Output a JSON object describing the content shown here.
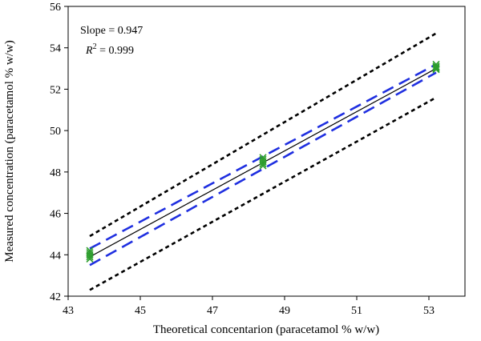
{
  "chart_data": {
    "type": "scatter",
    "xlabel": "Theoretical concentarion (paracetamol % w/w)",
    "ylabel": "Measured concentration (paracetamol % w/w)",
    "xlim": [
      43,
      54
    ],
    "ylim": [
      42,
      56
    ],
    "xticks": [
      43,
      45,
      47,
      49,
      51,
      53
    ],
    "yticks": [
      42,
      44,
      46,
      48,
      50,
      52,
      54,
      56
    ],
    "grid": false,
    "annotations": {
      "slope": "Slope = 0.947",
      "r_symbol": "R",
      "r_exponent": "2",
      "r_value": " = 0.999"
    },
    "points": {
      "color": "#2e9e2e",
      "x": [
        43.6,
        43.6,
        43.6,
        43.6,
        43.6,
        48.4,
        48.4,
        48.4,
        48.4,
        48.4,
        53.2,
        53.2,
        53.2,
        53.2,
        53.2
      ],
      "y": [
        43.8,
        43.9,
        44.0,
        44.1,
        44.2,
        48.3,
        48.4,
        48.5,
        48.6,
        48.7,
        52.95,
        53.0,
        53.05,
        53.1,
        53.2
      ]
    },
    "lines": [
      {
        "role": "regression",
        "color": "#000000",
        "dash": "solid",
        "x": [
          43.6,
          53.2
        ],
        "y": [
          43.9,
          53.0
        ]
      },
      {
        "role": "confidence-upper",
        "color": "#1f2fe0",
        "dash": "long-dash",
        "x": [
          43.6,
          53.2
        ],
        "y": [
          44.3,
          53.2
        ]
      },
      {
        "role": "confidence-lower",
        "color": "#1f2fe0",
        "dash": "long-dash",
        "x": [
          43.6,
          53.2
        ],
        "y": [
          43.5,
          52.8
        ]
      },
      {
        "role": "prediction-upper",
        "color": "#000000",
        "dash": "short-dash",
        "x": [
          43.6,
          53.2
        ],
        "y": [
          44.9,
          54.7
        ]
      },
      {
        "role": "prediction-lower",
        "color": "#000000",
        "dash": "short-dash",
        "x": [
          43.6,
          53.2
        ],
        "y": [
          42.3,
          51.6
        ]
      }
    ]
  }
}
